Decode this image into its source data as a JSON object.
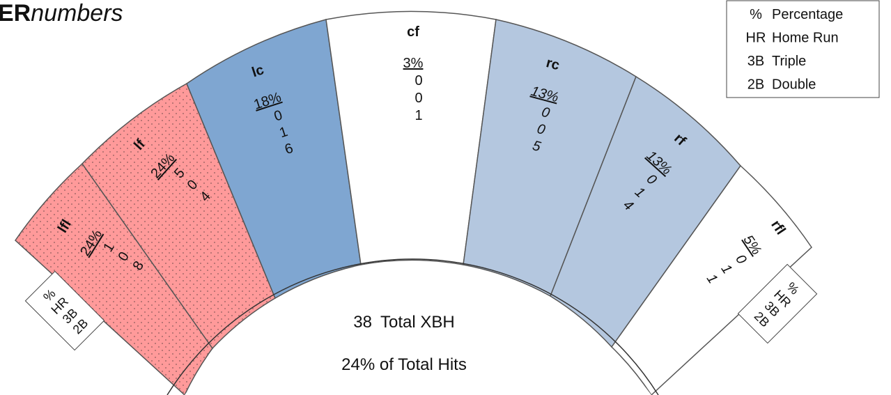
{
  "title": {
    "bold": "ER",
    "italic": "numbers"
  },
  "legend": [
    {
      "abbr": "%",
      "name": "Percentage"
    },
    {
      "abbr": "HR",
      "name": "Home Run"
    },
    {
      "abbr": "3B",
      "name": "Triple"
    },
    {
      "abbr": "2B",
      "name": "Double"
    }
  ],
  "sectors": [
    {
      "label": "lfl",
      "pct": "24%",
      "hr": 1,
      "triple": 0,
      "double": 8
    },
    {
      "label": "lf",
      "pct": "24%",
      "hr": 5,
      "triple": 0,
      "double": 4
    },
    {
      "label": "lc",
      "pct": "18%",
      "hr": 0,
      "triple": 1,
      "double": 6
    },
    {
      "label": "cf",
      "pct": "3%",
      "hr": 0,
      "triple": 0,
      "double": 1
    },
    {
      "label": "rc",
      "pct": "13%",
      "hr": 0,
      "triple": 0,
      "double": 5
    },
    {
      "label": "rf",
      "pct": "13%",
      "hr": 0,
      "triple": 1,
      "double": 4
    },
    {
      "label": "rfl",
      "pct": "5%",
      "hr": 0,
      "triple": 1,
      "double": 1
    }
  ],
  "summary": {
    "total": "38",
    "total_label": "Total XBH",
    "share": "24% of Total Hits"
  },
  "key_left": [
    "%",
    "HR",
    "3B",
    "2B"
  ],
  "key_right": [
    "%",
    "HR",
    "3B",
    "2B"
  ]
}
